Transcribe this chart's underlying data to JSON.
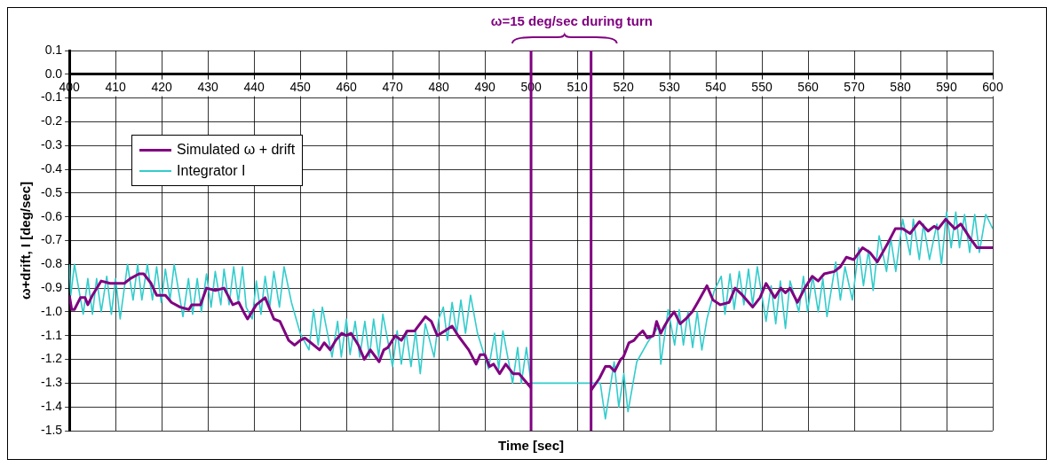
{
  "chart_data": {
    "type": "line",
    "xlabel": "Time [sec]",
    "ylabel": "ω+drift, I [deg/sec]",
    "xlim": [
      400,
      600
    ],
    "xticks": [
      400,
      410,
      420,
      430,
      440,
      450,
      460,
      470,
      480,
      490,
      500,
      510,
      520,
      530,
      540,
      550,
      560,
      570,
      580,
      590,
      600
    ],
    "ylim": [
      -1.5,
      0.1
    ],
    "yticks": [
      0.1,
      {
        "value": 0,
        "label": "0.0"
      },
      -0.1,
      -0.2,
      -0.3,
      -0.4,
      -0.5,
      -0.6,
      -0.7,
      -0.8,
      -0.9,
      {
        "value": -1,
        "label": "-1.0"
      },
      -1.1,
      -1.2,
      -1.3,
      -1.4,
      -1.5
    ],
    "grid": true,
    "legend": "top left",
    "marker": "none",
    "annotations": [
      "ω=15 deg/sec during turn"
    ],
    "ref_lines": [
      {
        "axis": "x",
        "value": 500,
        "color": "#800080"
      },
      {
        "axis": "x",
        "value": 513,
        "color": "#800080"
      }
    ],
    "series": [
      {
        "name": "Simulated ω + drift",
        "color": "#800080",
        "x": [
          400,
          400.5,
          401.1,
          402.4,
          403.4,
          404,
          405,
          406.9,
          408.8,
          410.3,
          411.9,
          413.2,
          415.1,
          416.1,
          417.7,
          418.9,
          420.8,
          422.1,
          424,
          425.9,
          426.5,
          428.4,
          429.7,
          431.6,
          433.5,
          435.4,
          436.7,
          438,
          438.6,
          440.5,
          442.4,
          444.3,
          445.6,
          447.5,
          448.8,
          450,
          451,
          452.3,
          454.2,
          455.2,
          456.5,
          457.7,
          459,
          460,
          461,
          462.6,
          463.9,
          465.2,
          467.1,
          468.1,
          469,
          470.6,
          471.9,
          473.2,
          474.8,
          477.1,
          478.4,
          479.7,
          481.3,
          482.9,
          484.2,
          486.5,
          488.1,
          489,
          490,
          491,
          491.9,
          493.2,
          494.5,
          496.1,
          497.4,
          498.7,
          500,
          506,
          513,
          514.8,
          516.1,
          517.1,
          518.1,
          519.4,
          520,
          521.2,
          522.3,
          523.1,
          524.2,
          525.2,
          526.5,
          527.2,
          528.1,
          528.9,
          529.8,
          531,
          532.3,
          533.5,
          534.9,
          536.1,
          538.1,
          539.4,
          541,
          542.9,
          544.2,
          545.8,
          548,
          549.6,
          550.9,
          552.8,
          554.1,
          555.1,
          556.1,
          557.7,
          559.3,
          560.9,
          562.2,
          563.5,
          565.7,
          567,
          568.3,
          569.9,
          571.8,
          573.4,
          575,
          577.3,
          578.9,
          580.5,
          582.1,
          584.1,
          586,
          587.3,
          588.2,
          589.8,
          591.8,
          593.1,
          595.1,
          596.6,
          600
        ],
        "values": [
          -0.93,
          -0.99,
          -0.99,
          -0.94,
          -0.94,
          -0.97,
          -0.93,
          -0.87,
          -0.88,
          -0.88,
          -0.88,
          -0.86,
          -0.84,
          -0.84,
          -0.88,
          -0.93,
          -0.93,
          -0.96,
          -0.98,
          -0.99,
          -0.97,
          -0.97,
          -0.9,
          -0.91,
          -0.9,
          -0.97,
          -0.96,
          -1.01,
          -1.03,
          -0.97,
          -0.94,
          -1.03,
          -1.04,
          -1.12,
          -1.14,
          -1.12,
          -1.11,
          -1.13,
          -1.16,
          -1.13,
          -1.16,
          -1.12,
          -1.09,
          -1.1,
          -1.09,
          -1.14,
          -1.2,
          -1.16,
          -1.21,
          -1.16,
          -1.15,
          -1.1,
          -1.12,
          -1.08,
          -1.08,
          -1.02,
          -1.04,
          -1.1,
          -1.08,
          -1.06,
          -1.1,
          -1.16,
          -1.22,
          -1.18,
          -1.18,
          -1.23,
          -1.22,
          -1.26,
          -1.22,
          -1.26,
          -1.26,
          -1.29,
          -1.32,
          null,
          -1.33,
          -1.28,
          -1.23,
          -1.23,
          -1.25,
          -1.2,
          -1.19,
          -1.13,
          -1.12,
          -1.1,
          -1.08,
          -1.11,
          -1.1,
          -1.04,
          -1.09,
          -1.06,
          -1.03,
          -1,
          -1.05,
          -1.03,
          -1,
          -0.96,
          -0.89,
          -0.95,
          -0.97,
          -0.96,
          -0.9,
          -0.93,
          -0.98,
          -0.94,
          -0.88,
          -0.94,
          -0.9,
          -0.92,
          -0.9,
          -0.96,
          -0.9,
          -0.85,
          -0.87,
          -0.84,
          -0.83,
          -0.81,
          -0.77,
          -0.78,
          -0.73,
          -0.75,
          -0.79,
          -0.71,
          -0.65,
          -0.65,
          -0.67,
          -0.62,
          -0.66,
          -0.64,
          -0.65,
          -0.61,
          -0.65,
          -0.63,
          -0.69,
          -0.73,
          -0.73
        ]
      },
      {
        "name": "Integrator I",
        "color": "#33cccc",
        "x": [
          400,
          400.3,
          401.1,
          403,
          404,
          405,
          405.9,
          406.9,
          408.1,
          409.1,
          410,
          411,
          412.6,
          413.8,
          414.8,
          415.7,
          416.9,
          418,
          418.9,
          419.9,
          420.8,
          421.8,
          422.7,
          424.6,
          425.8,
          426.7,
          427.7,
          428.6,
          429.7,
          430.7,
          431.6,
          432.8,
          433.5,
          434.6,
          435.6,
          436.6,
          437.5,
          438.3,
          439.6,
          440.5,
          441.5,
          442.4,
          443.4,
          444.3,
          445.5,
          446.5,
          448.1,
          450,
          451.9,
          452.9,
          453.9,
          454.8,
          456.9,
          458.1,
          458.9,
          460,
          460.8,
          461.9,
          462.9,
          464,
          465,
          465.9,
          467,
          467.9,
          470,
          471,
          471.9,
          472.9,
          474,
          475,
          476,
          477.1,
          479,
          480,
          481,
          481.9,
          482.9,
          483.9,
          484.8,
          485.8,
          486.9,
          488.4,
          490.8,
          492.1,
          493,
          493.9,
          496,
          497.1,
          497.9,
          499,
          500,
          515,
          516.1,
          518,
          519,
          520.1,
          521,
          522.9,
          525.2,
          527.7,
          528.1,
          529.7,
          531.1,
          532.1,
          533,
          534,
          535,
          536,
          537,
          538.1,
          539.7,
          541.2,
          542,
          543.1,
          544,
          545.1,
          546.1,
          547.1,
          548,
          549,
          550.9,
          552,
          553,
          554,
          555.1,
          556.1,
          558,
          559,
          559.9,
          561,
          562.2,
          563.2,
          564.1,
          566,
          567,
          568,
          569.6,
          571,
          572,
          573.1,
          574.1,
          575.4,
          577,
          577.9,
          579,
          580.5,
          582.1,
          582.8,
          584.1,
          585,
          586.3,
          587.9,
          588.9,
          590,
          591,
          592,
          592.8,
          593.9,
          595,
          596.1,
          597.1,
          598.5,
          600
        ],
        "values": [
          -0.8,
          -0.93,
          -0.8,
          -1.01,
          -0.86,
          -1.01,
          -0.86,
          -1,
          -0.85,
          -1.01,
          -0.86,
          -1.03,
          -0.8,
          -0.95,
          -0.8,
          -0.95,
          -0.8,
          -0.95,
          -0.81,
          -0.96,
          -0.82,
          -0.95,
          -0.8,
          -1.02,
          -0.86,
          -1.01,
          -0.86,
          -1,
          -0.84,
          -0.98,
          -0.83,
          -0.97,
          -0.82,
          -0.97,
          -0.81,
          -0.96,
          -0.81,
          -0.98,
          -1.03,
          -0.87,
          -1.01,
          -0.85,
          -0.98,
          -0.83,
          -0.98,
          -0.81,
          -0.96,
          -1.09,
          -1.16,
          -0.99,
          -1.14,
          -0.98,
          -1.19,
          -1.04,
          -1.19,
          -1.03,
          -1.18,
          -1.04,
          -1.19,
          -1.04,
          -1.19,
          -1.03,
          -1.19,
          -1.01,
          -1.23,
          -1.08,
          -1.22,
          -1.08,
          -1.23,
          -1.08,
          -1.26,
          -1.05,
          -1.19,
          -1.03,
          -0.98,
          -1.12,
          -0.96,
          -1.09,
          -0.95,
          -1.09,
          -0.93,
          -1.09,
          -1.24,
          -1.09,
          -1.24,
          -1.08,
          -1.3,
          -1.15,
          -1.3,
          -1.15,
          -1.3,
          -1.3,
          -1.45,
          -1.21,
          -1.4,
          -1.26,
          -1.42,
          -1.21,
          -1.13,
          -1.06,
          -1.22,
          -0.99,
          -1.14,
          -0.99,
          -1.14,
          -1,
          -1.15,
          -1,
          -1.16,
          -1.03,
          -0.91,
          -0.85,
          -1.01,
          -0.84,
          -0.99,
          -0.83,
          -0.97,
          -0.82,
          -0.97,
          -0.81,
          -1.04,
          -0.89,
          -1.05,
          -0.87,
          -1.07,
          -0.87,
          -1,
          -0.85,
          -1,
          -0.85,
          -1,
          -0.86,
          -1.02,
          -0.79,
          -0.95,
          -0.81,
          -0.95,
          -0.73,
          -0.89,
          -0.74,
          -0.91,
          -0.68,
          -0.83,
          -0.69,
          -0.83,
          -0.61,
          -0.76,
          -0.61,
          -0.78,
          -0.63,
          -0.78,
          -0.63,
          -0.8,
          -0.58,
          -0.73,
          -0.58,
          -0.73,
          -0.59,
          -0.75,
          -0.59,
          -0.75,
          -0.59,
          -0.65
        ]
      }
    ]
  }
}
